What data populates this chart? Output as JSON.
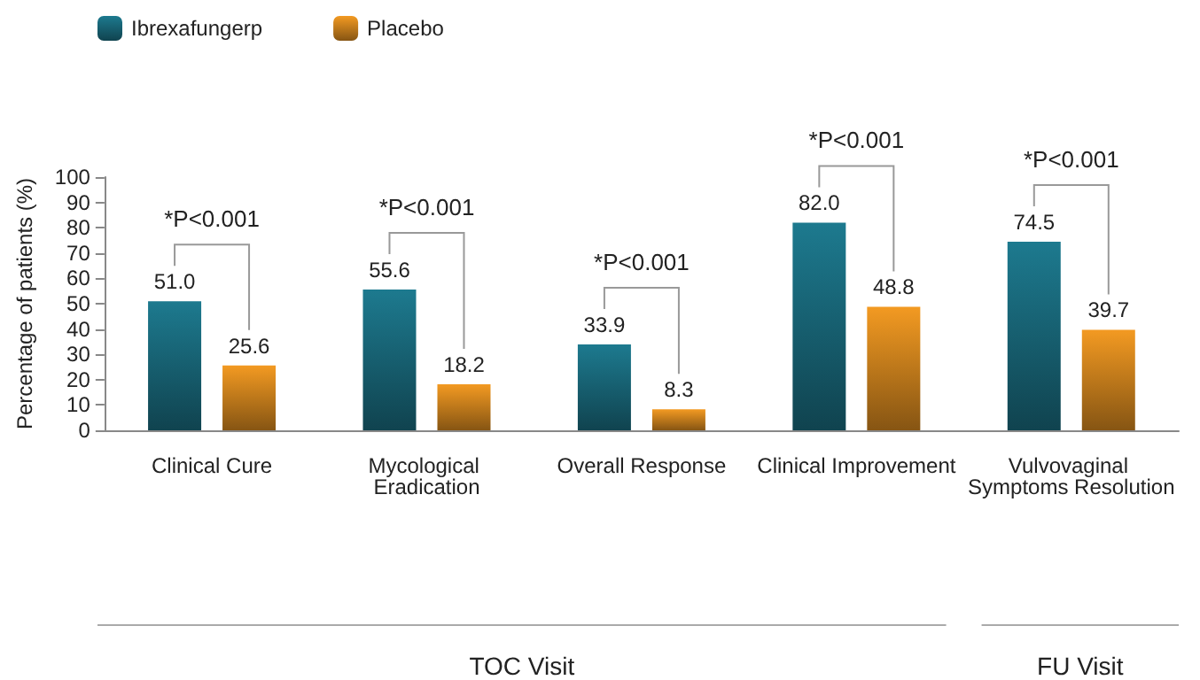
{
  "chart_data": {
    "type": "bar",
    "ylabel": "Percentage of patients (%)",
    "categories": [
      "Clinical Cure",
      "Mycological Eradication",
      "Overall Response",
      "Clinical Improvement",
      "Vulvovaginal Symptoms Resolution"
    ],
    "series": [
      {
        "name": "Ibrexafungerp",
        "color": "#1d7a8f",
        "values": [
          51.0,
          55.6,
          33.9,
          82.0,
          74.5
        ],
        "value_labels": [
          "51.0",
          "55.6",
          "33.9",
          "82.0",
          "74.5"
        ]
      },
      {
        "name": "Placebo",
        "color": "#f39a22",
        "values": [
          25.6,
          18.2,
          8.3,
          48.8,
          39.7
        ],
        "value_labels": [
          "25.6",
          "18.2",
          "8.3",
          "48.8",
          "39.7"
        ]
      }
    ],
    "ylim": [
      0,
      100
    ],
    "yticks": [
      0,
      10,
      20,
      30,
      40,
      50,
      60,
      70,
      80,
      90,
      100
    ],
    "legend": "top left",
    "grid": false,
    "annotations": [
      "*P<0.001",
      "*P<0.001",
      "*P<0.001",
      "*P<0.001",
      "*P<0.001",
      "TOC Visit",
      "FU Visit"
    ]
  }
}
